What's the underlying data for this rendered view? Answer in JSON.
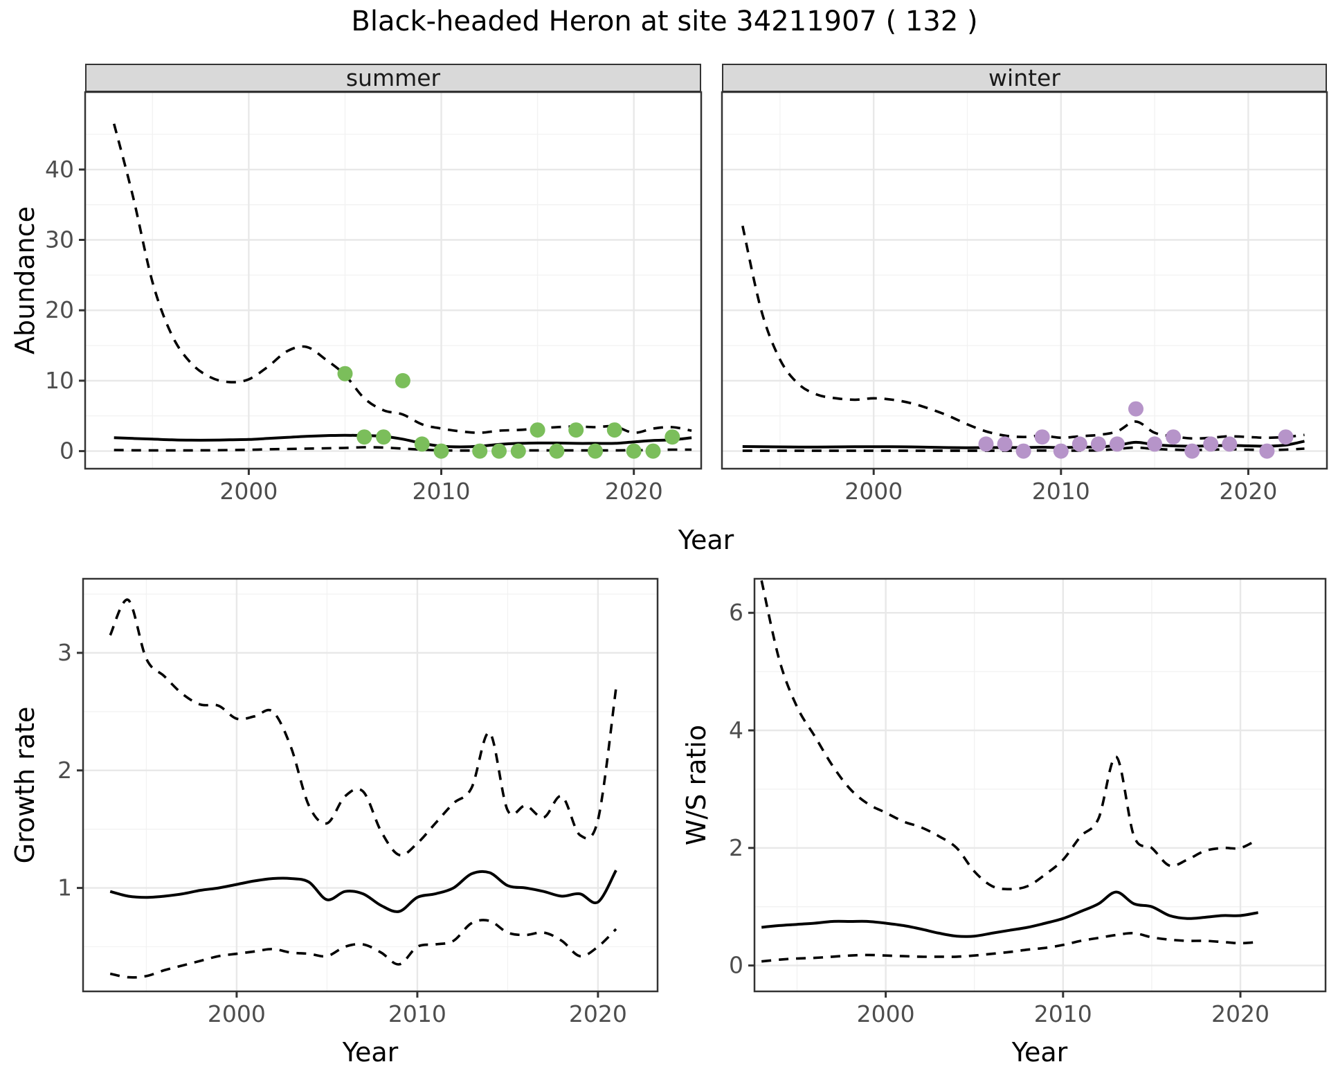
{
  "title": "Black-headed Heron at site 34211907 ( 132 )",
  "colors": {
    "summer_point": "#7bbe5b",
    "winter_point": "#b694c9",
    "line": "#000000",
    "strip_background": "#d9d9d9",
    "panel_border": "#333333",
    "grid_major": "#e8e8e8",
    "grid_minor": "#f2f2f2",
    "tick_text": "#4d4d4d"
  },
  "chart_data": [
    {
      "id": "abundance_summer",
      "type": "line",
      "facet_label": "summer",
      "ylabel": "Abundance",
      "xlabel": "Year",
      "x_ticks": [
        2000,
        2010,
        2020
      ],
      "y_ticks": [
        0,
        10,
        20,
        30,
        40
      ],
      "xlim": [
        1991.5,
        2023.5
      ],
      "ylim": [
        -2.5,
        51
      ],
      "grid": true,
      "legend_position": "none",
      "series": [
        {
          "name": "upper_95ci",
          "style": "dashed",
          "x": [
            1993,
            1994,
            1995,
            1996,
            1997,
            1998,
            1999,
            2000,
            2001,
            2002,
            2003,
            2004,
            2005,
            2006,
            2007,
            2008,
            2009,
            2010,
            2011,
            2012,
            2013,
            2014,
            2015,
            2016,
            2017,
            2018,
            2019,
            2020,
            2021,
            2022,
            2023
          ],
          "y": [
            46.5,
            36,
            24,
            16.5,
            12.5,
            10.5,
            9.8,
            10.2,
            12,
            14.2,
            14.8,
            13,
            10.8,
            7.5,
            5.8,
            5.2,
            3.8,
            3.2,
            2.8,
            2.6,
            2.9,
            3.0,
            3.2,
            3.4,
            3.5,
            3.4,
            3.5,
            2.6,
            3.2,
            3.4,
            2.9
          ]
        },
        {
          "name": "median",
          "style": "solid",
          "x": [
            1993,
            1994,
            1995,
            1996,
            1997,
            1998,
            1999,
            2000,
            2001,
            2002,
            2003,
            2004,
            2005,
            2006,
            2007,
            2008,
            2009,
            2010,
            2011,
            2012,
            2013,
            2014,
            2015,
            2016,
            2017,
            2018,
            2019,
            2020,
            2021,
            2022,
            2023
          ],
          "y": [
            1.9,
            1.8,
            1.7,
            1.6,
            1.55,
            1.55,
            1.6,
            1.65,
            1.8,
            1.95,
            2.1,
            2.2,
            2.25,
            2.2,
            2.1,
            1.7,
            1.1,
            0.7,
            0.6,
            0.7,
            0.95,
            1.1,
            1.15,
            1.15,
            1.1,
            1.1,
            1.1,
            1.3,
            1.5,
            1.6,
            1.9
          ]
        },
        {
          "name": "lower_95ci",
          "style": "dashed",
          "x": [
            1993,
            1994,
            1995,
            1996,
            1997,
            1998,
            1999,
            2000,
            2001,
            2002,
            2003,
            2004,
            2005,
            2006,
            2007,
            2008,
            2009,
            2010,
            2011,
            2012,
            2013,
            2014,
            2015,
            2016,
            2017,
            2018,
            2019,
            2020,
            2021,
            2022,
            2023
          ],
          "y": [
            0.15,
            0.12,
            0.1,
            0.1,
            0.1,
            0.12,
            0.15,
            0.18,
            0.25,
            0.3,
            0.35,
            0.4,
            0.45,
            0.55,
            0.5,
            0.35,
            0.2,
            0.1,
            0.08,
            0.08,
            0.1,
            0.1,
            0.1,
            0.1,
            0.1,
            0.1,
            0.1,
            0.12,
            0.15,
            0.2,
            0.2
          ]
        }
      ],
      "points": {
        "name": "observed_counts_summer",
        "color_key": "summer_point",
        "x": [
          2005,
          2006,
          2007,
          2008,
          2009,
          2010,
          2012,
          2013,
          2014,
          2015,
          2016,
          2017,
          2018,
          2019,
          2020,
          2021,
          2022
        ],
        "y": [
          11,
          2,
          2,
          10,
          1,
          0,
          0,
          0,
          0,
          3,
          0,
          3,
          0,
          3,
          0,
          0,
          2
        ]
      }
    },
    {
      "id": "abundance_winter",
      "type": "line",
      "facet_label": "winter",
      "ylabel": "Abundance",
      "xlabel": "Year",
      "x_ticks": [
        2000,
        2010,
        2020
      ],
      "y_ticks": [
        0,
        10,
        20,
        30,
        40
      ],
      "xlim": [
        1991.9,
        2024.2
      ],
      "ylim": [
        -2.5,
        51
      ],
      "grid": true,
      "legend_position": "none",
      "series": [
        {
          "name": "upper_95ci",
          "style": "dashed",
          "x": [
            1993,
            1994,
            1995,
            1996,
            1997,
            1998,
            1999,
            2000,
            2001,
            2002,
            2003,
            2004,
            2005,
            2006,
            2007,
            2008,
            2009,
            2010,
            2011,
            2012,
            2013,
            2014,
            2015,
            2016,
            2017,
            2018,
            2019,
            2020,
            2021,
            2022,
            2023
          ],
          "y": [
            32,
            20,
            13,
            9.5,
            8,
            7.5,
            7.3,
            7.5,
            7.3,
            6.8,
            6,
            5,
            3.8,
            2.8,
            2.2,
            2.0,
            2.2,
            1.9,
            2.1,
            2.3,
            2.8,
            4.2,
            2.6,
            2.1,
            1.8,
            1.9,
            2.1,
            2.0,
            1.9,
            2.0,
            2.3
          ]
        },
        {
          "name": "median",
          "style": "solid",
          "x": [
            1993,
            1994,
            1995,
            1996,
            1997,
            1998,
            1999,
            2000,
            2001,
            2002,
            2003,
            2004,
            2005,
            2006,
            2007,
            2008,
            2009,
            2010,
            2011,
            2012,
            2013,
            2014,
            2015,
            2016,
            2017,
            2018,
            2019,
            2020,
            2021,
            2022,
            2023
          ],
          "y": [
            0.65,
            0.62,
            0.6,
            0.58,
            0.58,
            0.6,
            0.62,
            0.63,
            0.62,
            0.6,
            0.55,
            0.5,
            0.48,
            0.5,
            0.5,
            0.5,
            0.55,
            0.5,
            0.55,
            0.6,
            0.8,
            1.25,
            0.9,
            0.75,
            0.7,
            0.75,
            0.8,
            0.75,
            0.7,
            0.85,
            1.4
          ]
        },
        {
          "name": "lower_95ci",
          "style": "dashed",
          "x": [
            1993,
            1994,
            1995,
            1996,
            1997,
            1998,
            1999,
            2000,
            2001,
            2002,
            2003,
            2004,
            2005,
            2006,
            2007,
            2008,
            2009,
            2010,
            2011,
            2012,
            2013,
            2014,
            2015,
            2016,
            2017,
            2018,
            2019,
            2020,
            2021,
            2022,
            2023
          ],
          "y": [
            0.05,
            0.05,
            0.05,
            0.05,
            0.05,
            0.05,
            0.05,
            0.05,
            0.05,
            0.05,
            0.05,
            0.05,
            0.05,
            0.05,
            0.05,
            0.05,
            0.08,
            0.05,
            0.08,
            0.1,
            0.3,
            0.5,
            0.3,
            0.2,
            0.15,
            0.2,
            0.25,
            0.2,
            0.15,
            0.2,
            0.35
          ]
        }
      ],
      "points": {
        "name": "observed_counts_winter",
        "color_key": "winter_point",
        "x": [
          2006,
          2007,
          2008,
          2009,
          2010,
          2011,
          2012,
          2013,
          2014,
          2015,
          2016,
          2017,
          2018,
          2019,
          2021,
          2022
        ],
        "y": [
          1,
          1,
          0,
          2,
          0,
          1,
          1,
          1,
          6,
          1,
          2,
          0,
          1,
          1,
          0,
          2
        ]
      }
    },
    {
      "id": "growth_rate",
      "type": "line",
      "facet_label": "",
      "ylabel": "Growth rate",
      "xlabel": "Year",
      "x_ticks": [
        2000,
        2010,
        2020
      ],
      "y_ticks": [
        1,
        2,
        3
      ],
      "xlim": [
        1991.5,
        2023.3
      ],
      "ylim": [
        0.12,
        3.63
      ],
      "grid": true,
      "legend_position": "none",
      "series": [
        {
          "name": "upper_95ci",
          "style": "dashed",
          "x": [
            1993,
            1994,
            1995,
            1996,
            1997,
            1998,
            1999,
            2000,
            2001,
            2002,
            2003,
            2004,
            2005,
            2006,
            2007,
            2008,
            2009,
            2010,
            2011,
            2012,
            2013,
            2014,
            2015,
            2016,
            2017,
            2018,
            2019,
            2020,
            2021
          ],
          "y": [
            3.15,
            3.45,
            2.95,
            2.8,
            2.65,
            2.56,
            2.55,
            2.44,
            2.46,
            2.5,
            2.2,
            1.7,
            1.55,
            1.78,
            1.82,
            1.48,
            1.28,
            1.38,
            1.55,
            1.72,
            1.85,
            2.32,
            1.66,
            1.7,
            1.6,
            1.78,
            1.45,
            1.58,
            2.7
          ]
        },
        {
          "name": "median",
          "style": "solid",
          "x": [
            1993,
            1994,
            1995,
            1996,
            1997,
            1998,
            1999,
            2000,
            2001,
            2002,
            2003,
            2004,
            2005,
            2006,
            2007,
            2008,
            2009,
            2010,
            2011,
            2012,
            2013,
            2014,
            2015,
            2016,
            2017,
            2018,
            2019,
            2020,
            2021
          ],
          "y": [
            0.97,
            0.93,
            0.92,
            0.93,
            0.95,
            0.98,
            1.0,
            1.03,
            1.06,
            1.08,
            1.08,
            1.05,
            0.9,
            0.97,
            0.95,
            0.85,
            0.8,
            0.92,
            0.95,
            1.0,
            1.12,
            1.13,
            1.02,
            1.0,
            0.97,
            0.93,
            0.95,
            0.88,
            1.15
          ]
        },
        {
          "name": "lower_95ci",
          "style": "dashed",
          "x": [
            1993,
            1994,
            1995,
            1996,
            1997,
            1998,
            1999,
            2000,
            2001,
            2002,
            2003,
            2004,
            2005,
            2006,
            2007,
            2008,
            2009,
            2010,
            2011,
            2012,
            2013,
            2014,
            2015,
            2016,
            2017,
            2018,
            2019,
            2020,
            2021
          ],
          "y": [
            0.27,
            0.24,
            0.25,
            0.3,
            0.34,
            0.38,
            0.42,
            0.44,
            0.46,
            0.48,
            0.45,
            0.44,
            0.42,
            0.5,
            0.52,
            0.45,
            0.35,
            0.5,
            0.52,
            0.55,
            0.7,
            0.72,
            0.62,
            0.6,
            0.62,
            0.55,
            0.42,
            0.5,
            0.65
          ]
        }
      ],
      "points": null
    },
    {
      "id": "ws_ratio",
      "type": "line",
      "facet_label": "",
      "ylabel": "W/S ratio",
      "xlabel": "Year",
      "x_ticks": [
        2000,
        2010,
        2020
      ],
      "y_ticks": [
        0,
        2,
        4,
        6
      ],
      "xlim": [
        1992.6,
        2024.8
      ],
      "ylim": [
        -0.44,
        6.58
      ],
      "grid": true,
      "legend_position": "none",
      "series": [
        {
          "name": "upper_95ci",
          "style": "dashed",
          "x": [
            1993,
            1994,
            1995,
            1996,
            1997,
            1998,
            1999,
            2000,
            2001,
            2002,
            2003,
            2004,
            2005,
            2006,
            2007,
            2008,
            2009,
            2010,
            2011,
            2012,
            2013,
            2014,
            2015,
            2016,
            2017,
            2018,
            2019,
            2020,
            2021
          ],
          "y": [
            6.55,
            5.2,
            4.4,
            3.9,
            3.4,
            3.0,
            2.75,
            2.6,
            2.45,
            2.35,
            2.2,
            2.0,
            1.6,
            1.35,
            1.3,
            1.35,
            1.55,
            1.8,
            2.2,
            2.5,
            3.55,
            2.2,
            2.0,
            1.7,
            1.8,
            1.95,
            2.0,
            2.0,
            2.15
          ]
        },
        {
          "name": "median",
          "style": "solid",
          "x": [
            1993,
            1994,
            1995,
            1996,
            1997,
            1998,
            1999,
            2000,
            2001,
            2002,
            2003,
            2004,
            2005,
            2006,
            2007,
            2008,
            2009,
            2010,
            2011,
            2012,
            2013,
            2014,
            2015,
            2016,
            2017,
            2018,
            2019,
            2020,
            2021
          ],
          "y": [
            0.65,
            0.68,
            0.7,
            0.72,
            0.75,
            0.75,
            0.75,
            0.72,
            0.68,
            0.62,
            0.55,
            0.5,
            0.5,
            0.55,
            0.6,
            0.65,
            0.72,
            0.8,
            0.92,
            1.05,
            1.25,
            1.05,
            1.0,
            0.85,
            0.8,
            0.82,
            0.85,
            0.85,
            0.9
          ]
        },
        {
          "name": "lower_95ci",
          "style": "dashed",
          "x": [
            1993,
            1994,
            1995,
            1996,
            1997,
            1998,
            1999,
            2000,
            2001,
            2002,
            2003,
            2004,
            2005,
            2006,
            2007,
            2008,
            2009,
            2010,
            2011,
            2012,
            2013,
            2014,
            2015,
            2016,
            2017,
            2018,
            2019,
            2020,
            2021
          ],
          "y": [
            0.07,
            0.1,
            0.12,
            0.13,
            0.15,
            0.17,
            0.18,
            0.17,
            0.16,
            0.15,
            0.15,
            0.15,
            0.17,
            0.2,
            0.23,
            0.27,
            0.3,
            0.35,
            0.42,
            0.47,
            0.52,
            0.55,
            0.48,
            0.44,
            0.42,
            0.42,
            0.4,
            0.38,
            0.4
          ]
        }
      ],
      "points": null
    }
  ]
}
